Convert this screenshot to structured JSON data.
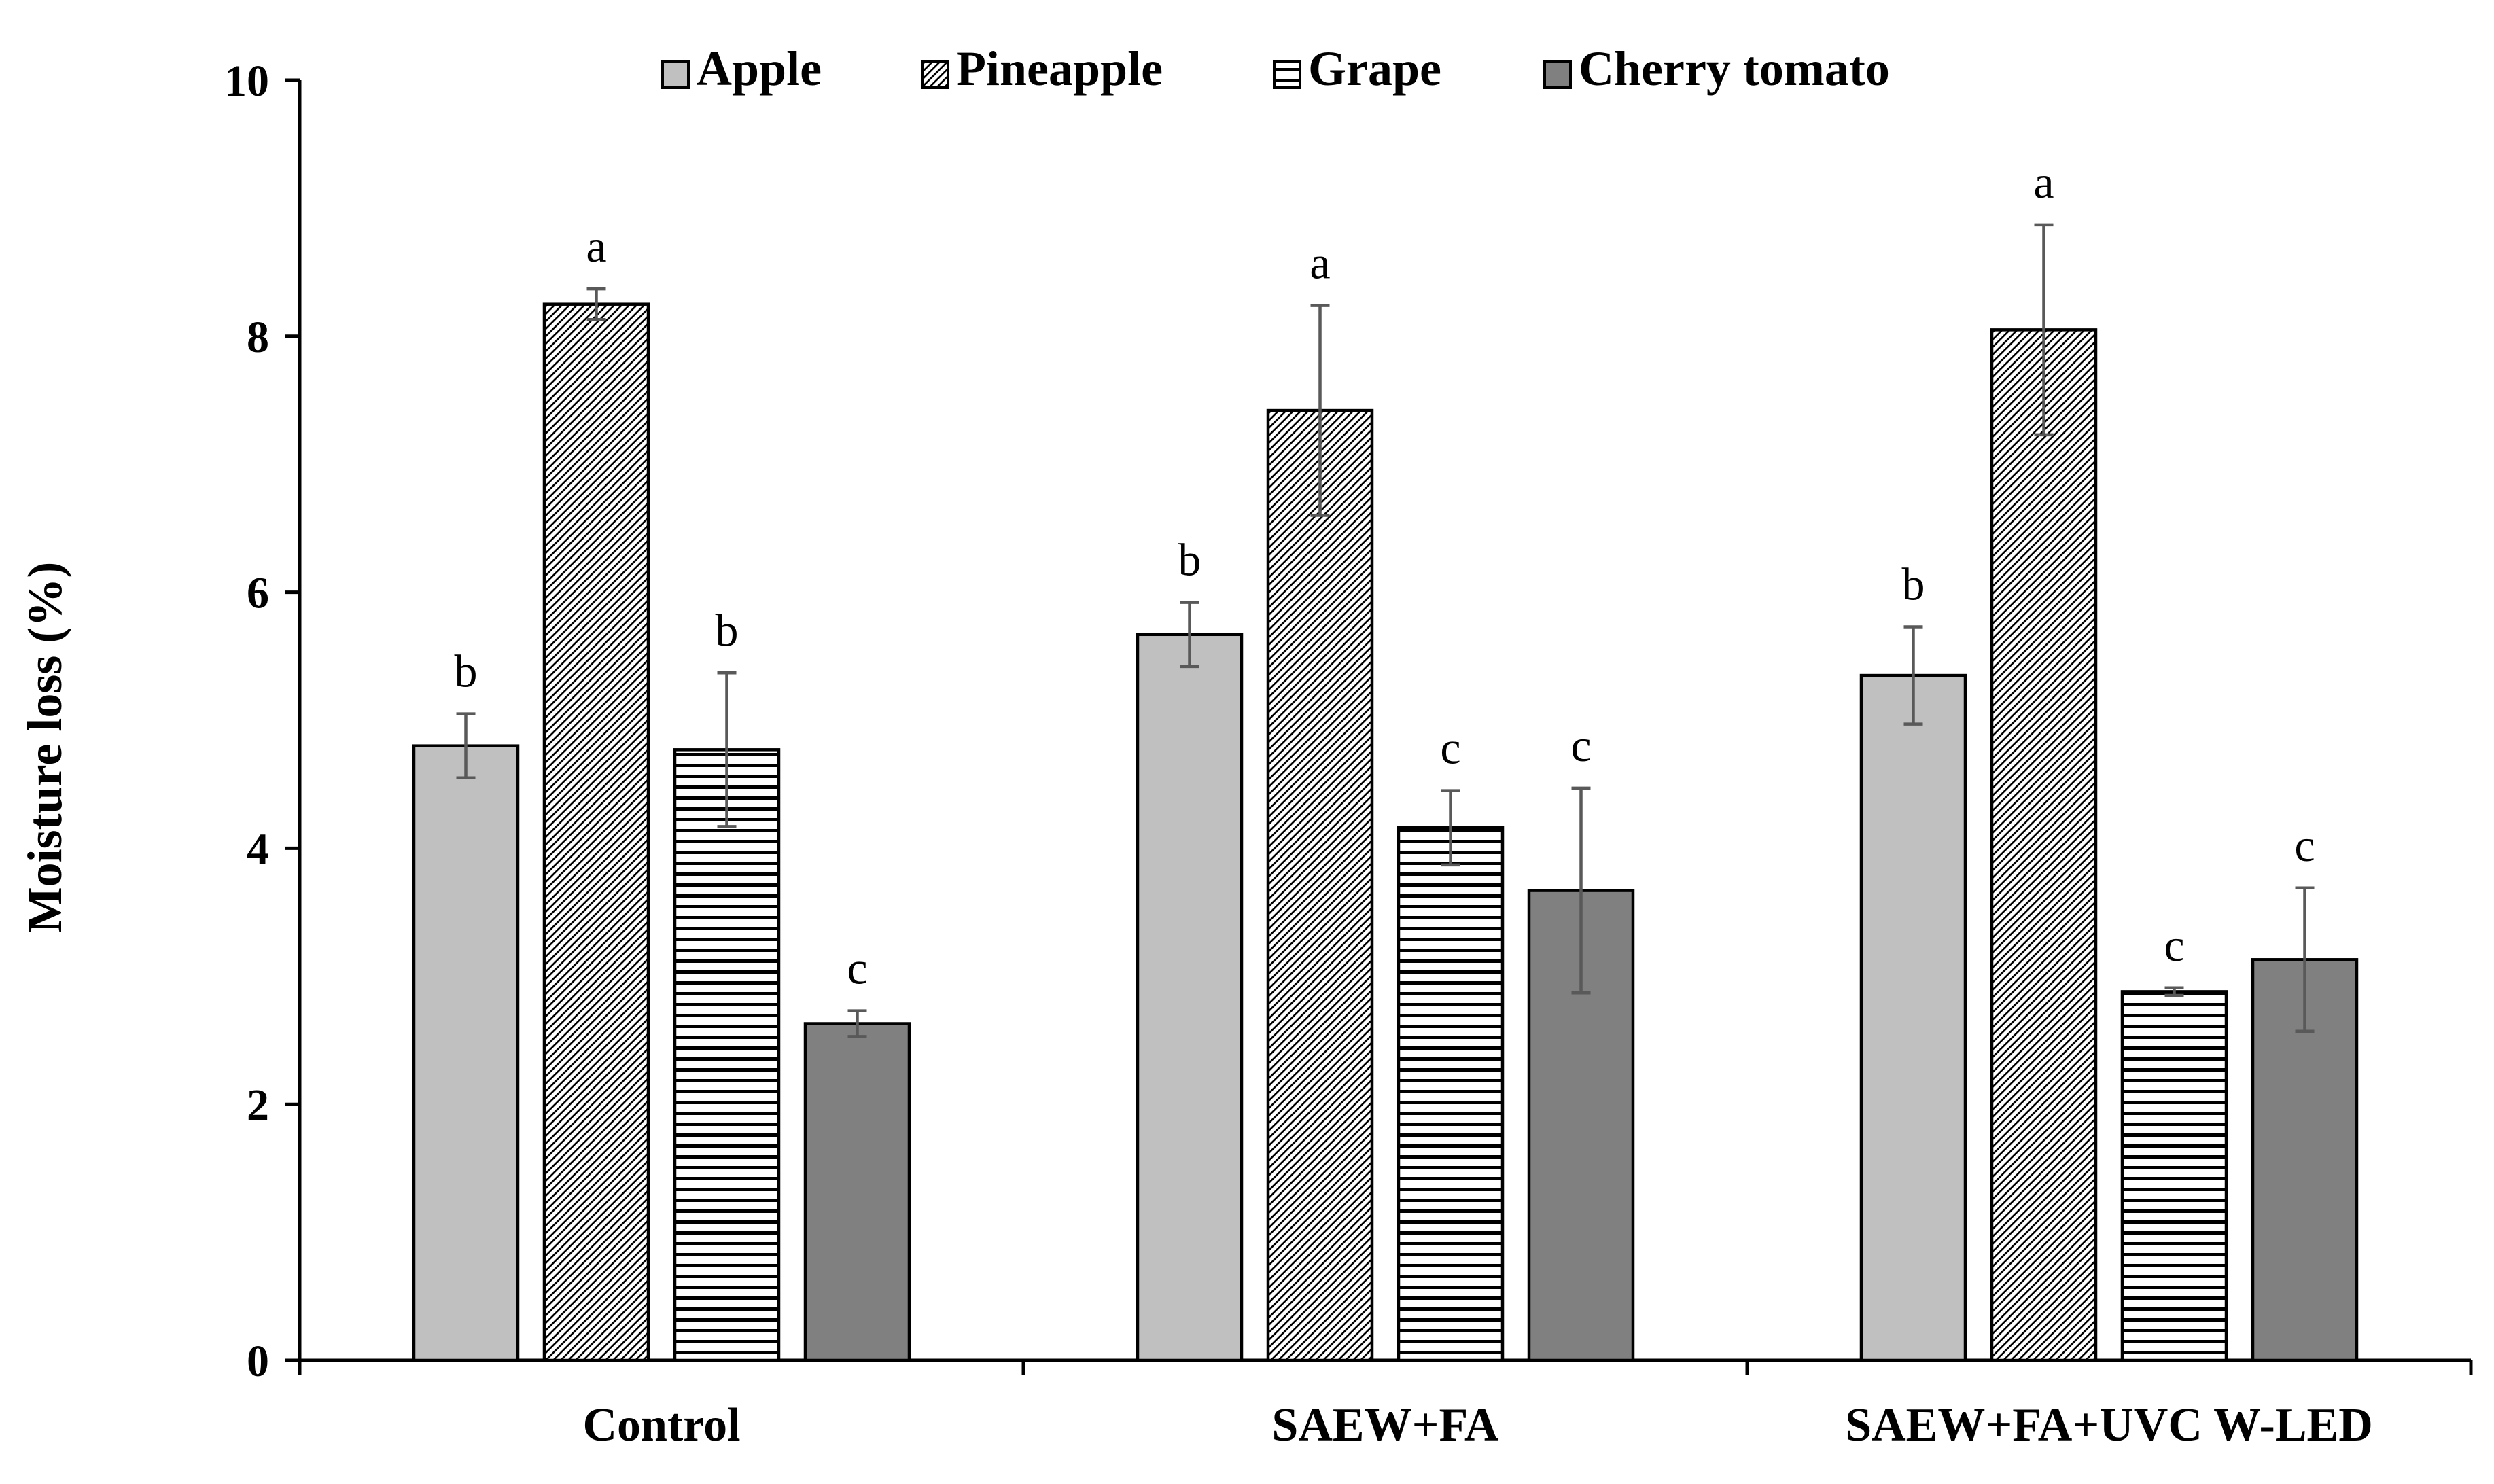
{
  "chart_data": {
    "type": "bar",
    "title": "",
    "xlabel": "",
    "ylabel": "Moisture  loss  (%)",
    "ylim": [
      0,
      10
    ],
    "yticks": [
      0,
      2,
      4,
      6,
      8,
      10
    ],
    "grid": false,
    "legend_position": "top",
    "categories": [
      "Control",
      "SAEW+FA",
      "SAEW+FA+UVC W-LED"
    ],
    "series": [
      {
        "name": "Apple",
        "pattern": "solid-light",
        "color": "#c0c0c0",
        "values": [
          4.8,
          5.67,
          5.35
        ],
        "errors": [
          0.25,
          0.25,
          0.38
        ],
        "letters": [
          "b",
          "b",
          "b"
        ]
      },
      {
        "name": "Pineapple",
        "pattern": "diagonal-hatch",
        "color": "#ffffff",
        "values": [
          8.25,
          7.42,
          8.05
        ],
        "errors": [
          0.12,
          0.82,
          0.82
        ],
        "letters": [
          "a",
          "a",
          "a"
        ]
      },
      {
        "name": "Grape",
        "pattern": "horizontal-lines",
        "color": "#ffffff",
        "values": [
          4.77,
          4.16,
          2.88
        ],
        "errors": [
          0.6,
          0.29,
          0.03
        ],
        "letters": [
          "b",
          "c",
          "c"
        ]
      },
      {
        "name": "Cherry tomato",
        "pattern": "solid-dark",
        "color": "#808080",
        "values": [
          2.63,
          3.67,
          3.13
        ],
        "errors": [
          0.1,
          0.8,
          0.56
        ],
        "letters": [
          "c",
          "c",
          "c"
        ]
      }
    ]
  }
}
